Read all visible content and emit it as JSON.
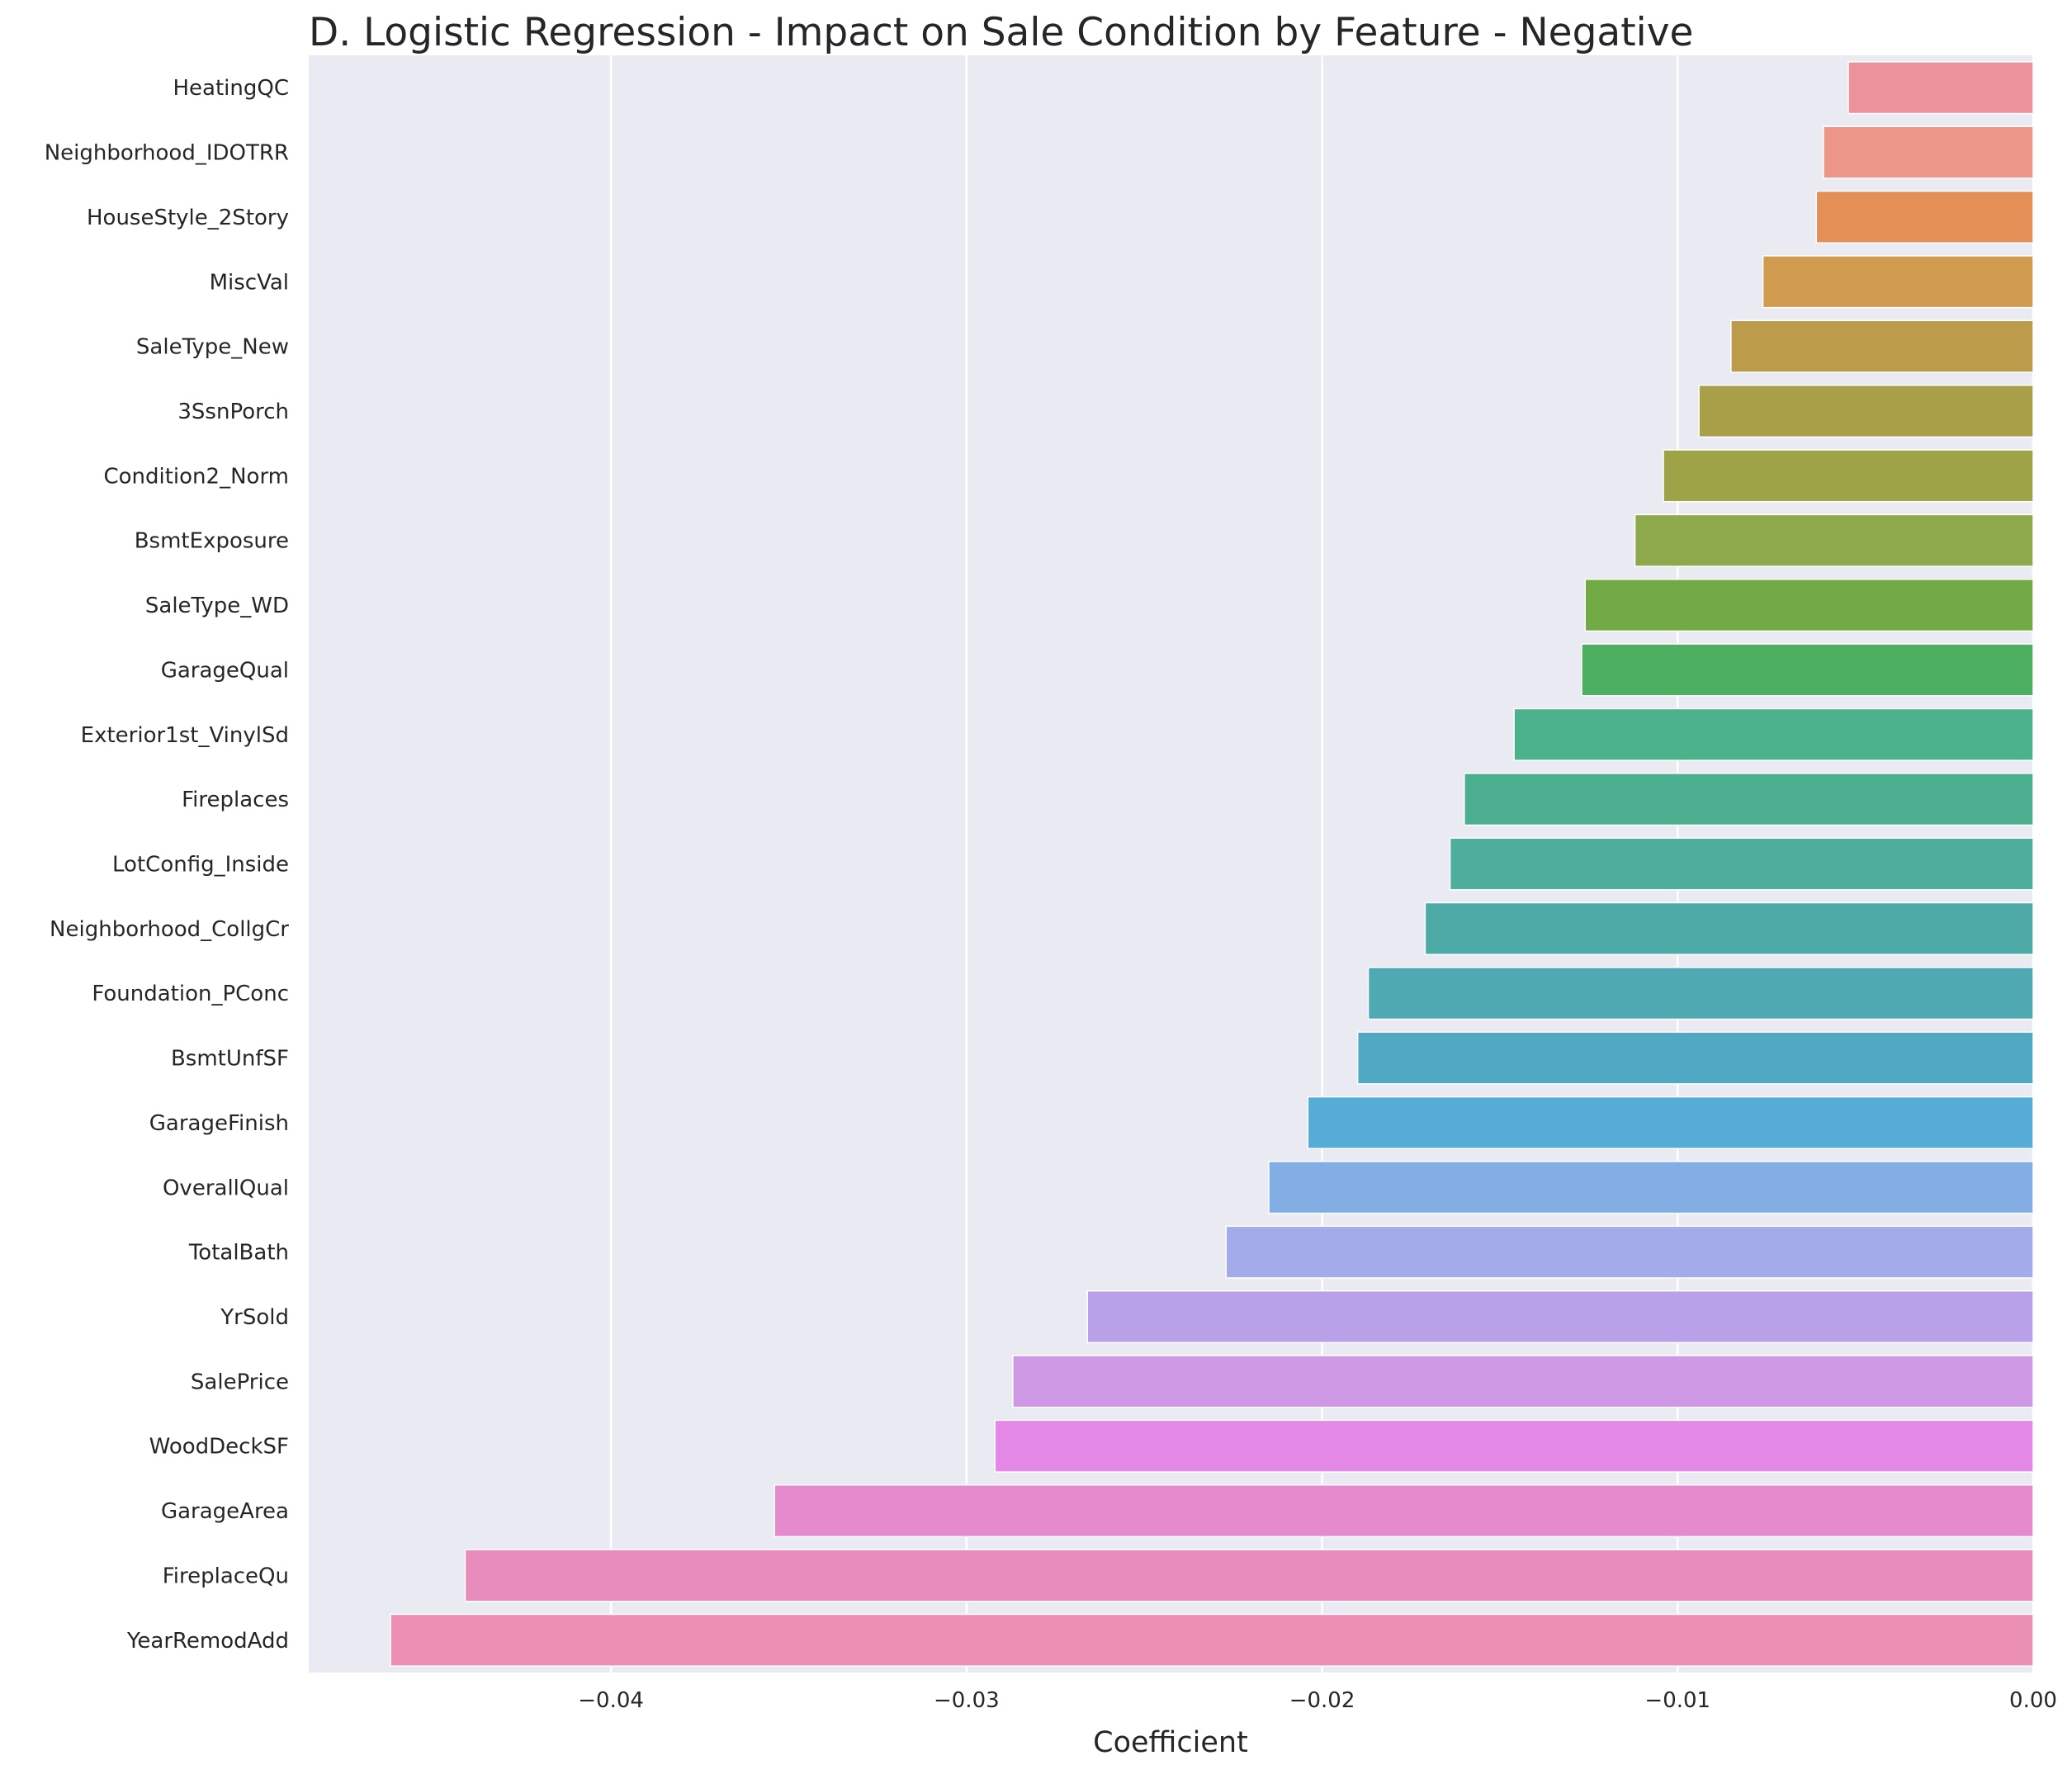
{
  "chart_data": {
    "type": "bar",
    "orientation": "horizontal",
    "title": "D. Logistic Regression - Impact on Sale Condition by Feature - Negative",
    "xlabel": "Coefficient",
    "ylabel": "",
    "xlim": [
      -0.0485,
      0.0
    ],
    "xticks": [
      -0.04,
      -0.03,
      -0.02,
      -0.01,
      0.0
    ],
    "xtick_labels": [
      "−0.04",
      "−0.03",
      "−0.02",
      "−0.01",
      "0.00"
    ],
    "grid": true,
    "categories": [
      "HeatingQC",
      "Neighborhood_IDOTRR",
      "HouseStyle_2Story",
      "MiscVal",
      "SaleType_New",
      "3SsnPorch",
      "Condition2_Norm",
      "BsmtExposure",
      "SaleType_WD",
      "GarageQual",
      "Exterior1st_VinylSd",
      "Fireplaces",
      "LotConfig_Inside",
      "Neighborhood_CollgCr",
      "Foundation_PConc",
      "BsmtUnfSF",
      "GarageFinish",
      "OverallQual",
      "TotalBath",
      "YrSold",
      "SalePrice",
      "WoodDeckSF",
      "GarageArea",
      "FireplaceQu",
      "YearRemodAdd"
    ],
    "values": [
      -0.0052,
      -0.0059,
      -0.0061,
      -0.0076,
      -0.0085,
      -0.0094,
      -0.0104,
      -0.0112,
      -0.0126,
      -0.0127,
      -0.0146,
      -0.016,
      -0.0164,
      -0.0171,
      -0.0187,
      -0.019,
      -0.0204,
      -0.0215,
      -0.0227,
      -0.0266,
      -0.0287,
      -0.0292,
      -0.0354,
      -0.0441,
      -0.0462
    ],
    "colors": [
      "#ec929c",
      "#ec968a",
      "#e48f56",
      "#d09a4f",
      "#bc9c4b",
      "#aa9f49",
      "#9fa348",
      "#8ea94b",
      "#72aa45",
      "#4db060",
      "#4cb28b",
      "#4bae8f",
      "#4dae9d",
      "#4daaa7",
      "#4ea9b3",
      "#50a9c3",
      "#55acd6",
      "#82aee3",
      "#a4abea",
      "#b8a1e8",
      "#cf98e5",
      "#e388e6",
      "#e68ace",
      "#e88cbd",
      "#eb90b4"
    ]
  }
}
